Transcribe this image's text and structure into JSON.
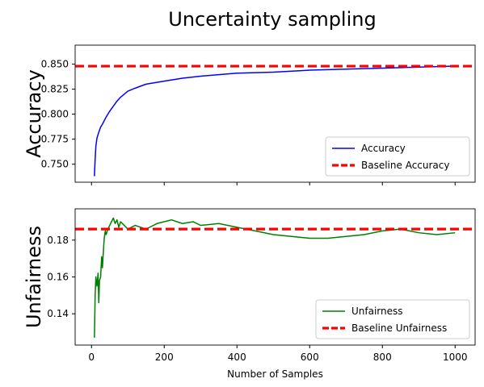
{
  "figure": {
    "title": "Uncertainty sampling"
  },
  "chart_data": [
    {
      "type": "line",
      "panel": "top",
      "ylabel": "Accuracy",
      "xlabel": "",
      "xlim": [
        -45,
        1055
      ],
      "ylim": [
        0.732,
        0.869
      ],
      "x_ticks": [
        0,
        200,
        400,
        600,
        800,
        1000
      ],
      "y_ticks": [
        0.75,
        0.775,
        0.8,
        0.825,
        0.85
      ],
      "y_tick_labels": [
        "0.750",
        "0.775",
        "0.800",
        "0.825",
        "0.850"
      ],
      "grid": false,
      "legend_position": "lower-right",
      "series": [
        {
          "name": "Accuracy",
          "color": "#0000ff",
          "x": [
            8,
            10,
            12,
            15,
            20,
            25,
            30,
            40,
            50,
            60,
            70,
            80,
            100,
            120,
            150,
            200,
            250,
            300,
            400,
            500,
            600,
            700,
            800,
            900,
            1000
          ],
          "y": [
            0.738,
            0.755,
            0.768,
            0.776,
            0.782,
            0.787,
            0.79,
            0.797,
            0.803,
            0.808,
            0.813,
            0.817,
            0.823,
            0.826,
            0.83,
            0.833,
            0.836,
            0.838,
            0.841,
            0.842,
            0.844,
            0.845,
            0.846,
            0.847,
            0.848
          ]
        }
      ],
      "reference_lines": [
        {
          "name": "Baseline Accuracy",
          "y": 0.848,
          "color": "#ff0000",
          "style": "dashed"
        }
      ]
    },
    {
      "type": "line",
      "panel": "bottom",
      "ylabel": "Unfairness",
      "xlabel": "Number of Samples",
      "xlim": [
        -45,
        1055
      ],
      "ylim": [
        0.123,
        0.197
      ],
      "x_ticks": [
        0,
        200,
        400,
        600,
        800,
        1000
      ],
      "x_tick_labels": [
        "0",
        "200",
        "400",
        "600",
        "800",
        "1000"
      ],
      "y_ticks": [
        0.14,
        0.16,
        0.18
      ],
      "y_tick_labels": [
        "0.14",
        "0.16",
        "0.18"
      ],
      "grid": false,
      "legend_position": "lower-right",
      "series": [
        {
          "name": "Unfairness",
          "color": "#008000",
          "x": [
            8,
            10,
            12,
            15,
            18,
            20,
            22,
            25,
            28,
            30,
            33,
            35,
            38,
            40,
            45,
            50,
            55,
            60,
            65,
            70,
            75,
            80,
            90,
            100,
            120,
            150,
            180,
            200,
            220,
            250,
            280,
            300,
            350,
            400,
            450,
            500,
            550,
            600,
            650,
            700,
            750,
            800,
            850,
            900,
            950,
            1000
          ],
          "y": [
            0.127,
            0.15,
            0.16,
            0.155,
            0.162,
            0.146,
            0.158,
            0.16,
            0.171,
            0.165,
            0.175,
            0.181,
            0.185,
            0.183,
            0.186,
            0.188,
            0.19,
            0.192,
            0.189,
            0.191,
            0.187,
            0.19,
            0.188,
            0.186,
            0.188,
            0.186,
            0.189,
            0.19,
            0.191,
            0.189,
            0.19,
            0.188,
            0.189,
            0.187,
            0.185,
            0.183,
            0.182,
            0.181,
            0.181,
            0.182,
            0.183,
            0.185,
            0.186,
            0.184,
            0.183,
            0.184
          ]
        }
      ],
      "reference_lines": [
        {
          "name": "Baseline Unfairness",
          "y": 0.186,
          "color": "#ff0000",
          "style": "dashed"
        }
      ]
    }
  ]
}
